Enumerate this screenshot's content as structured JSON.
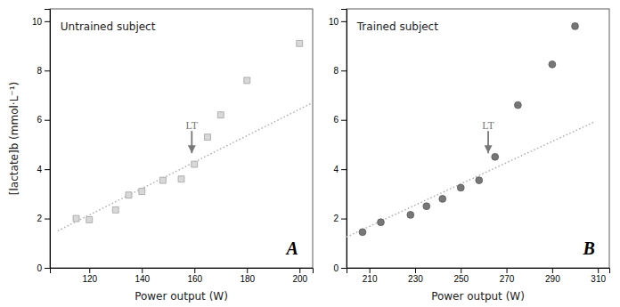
{
  "chart_data": [
    {
      "type": "scatter",
      "title": "Untrained subject",
      "x_label": "Power output (W)",
      "y_label": "[lactate]b (mmol·L⁻¹)",
      "xlim": [
        105,
        205
      ],
      "xticks": [
        120,
        140,
        160,
        180,
        200
      ],
      "ylim": [
        0,
        10.5
      ],
      "yticks": [
        0,
        2,
        4,
        6,
        8,
        10
      ],
      "series": [
        {
          "type": "scatter",
          "marker": "square",
          "color": "#d8d8d8",
          "x": [
            115,
            120,
            130,
            135,
            140,
            148,
            155,
            160,
            165,
            170,
            180,
            200
          ],
          "values": [
            2.0,
            1.95,
            2.35,
            2.95,
            3.1,
            3.55,
            3.6,
            4.2,
            5.3,
            6.2,
            7.6,
            9.1
          ]
        },
        {
          "type": "line",
          "line_style": "dotted",
          "color": "#aaaaaa",
          "x": [
            108,
            205
          ],
          "values": [
            1.5,
            6.7
          ]
        }
      ],
      "annotations": [
        {
          "text": "LT",
          "x": 159,
          "y": 4.65,
          "text_y": 5.55,
          "color": "#777777"
        },
        {
          "text": "A"
        }
      ]
    },
    {
      "type": "scatter",
      "title": "Trained subject",
      "x_label": "Power output (W)",
      "xlim": [
        200,
        315
      ],
      "xticks": [
        210,
        230,
        250,
        270,
        290,
        310
      ],
      "ylim": [
        0,
        10.5
      ],
      "yticks": [
        0,
        2,
        4,
        6,
        8,
        10
      ],
      "series": [
        {
          "type": "scatter",
          "marker": "circle",
          "color": "#777777",
          "x": [
            207,
            215,
            228,
            235,
            242,
            250,
            258,
            265,
            275,
            290,
            300
          ],
          "values": [
            1.45,
            1.85,
            2.15,
            2.5,
            2.8,
            3.25,
            3.55,
            4.5,
            6.6,
            8.25,
            9.8
          ]
        },
        {
          "type": "line",
          "line_style": "dotted",
          "color": "#aaaaaa",
          "x": [
            200,
            308
          ],
          "values": [
            1.25,
            5.9
          ]
        }
      ],
      "annotations": [
        {
          "text": "LT",
          "x": 262,
          "y": 4.65,
          "text_y": 5.55,
          "color": "#777777"
        },
        {
          "text": "B"
        }
      ]
    }
  ]
}
